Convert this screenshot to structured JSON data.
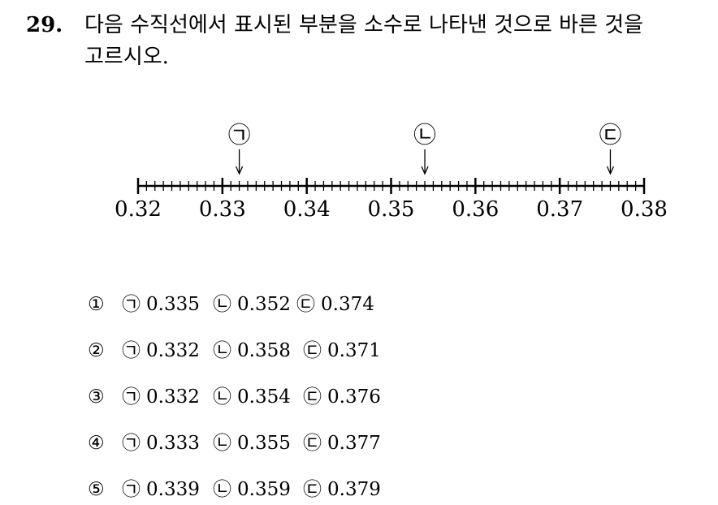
{
  "question": {
    "number": "29.",
    "lines": [
      "다음 수직선에서 표시된 부분을 소수로 나타낸 것으로 바른 것을",
      "고르시오."
    ]
  },
  "number_line": {
    "tick_labels": [
      0.32,
      0.33,
      0.34,
      0.35,
      0.36,
      0.37,
      0.38
    ],
    "markers": [
      "㉠",
      "㉡",
      "㉢"
    ]
  },
  "choices": [
    {
      "number": "①",
      "items": [
        {
          "mark": "㉠",
          "value": 0.335
        },
        {
          "mark": "㉡",
          "value": 0.352
        },
        {
          "mark": "㉢",
          "value": 0.374
        }
      ]
    },
    {
      "number": "②",
      "items": [
        {
          "mark": "㉠",
          "value": 0.332
        },
        {
          "mark": "㉡",
          "value": 0.358
        },
        {
          "mark": "㉢",
          "value": 0.371
        }
      ]
    },
    {
      "number": "③",
      "items": [
        {
          "mark": "㉠",
          "value": 0.332
        },
        {
          "mark": "㉡",
          "value": 0.354
        },
        {
          "mark": "㉢",
          "value": 0.376
        }
      ]
    },
    {
      "number": "④",
      "items": [
        {
          "mark": "㉠",
          "value": 0.333
        },
        {
          "mark": "㉡",
          "value": 0.355
        },
        {
          "mark": "㉢",
          "value": 0.377
        }
      ]
    },
    {
      "number": "⑤",
      "items": [
        {
          "mark": "㉠",
          "value": 0.339
        },
        {
          "mark": "㉡",
          "value": 0.359
        },
        {
          "mark": "㉢",
          "value": 0.379
        }
      ]
    }
  ]
}
